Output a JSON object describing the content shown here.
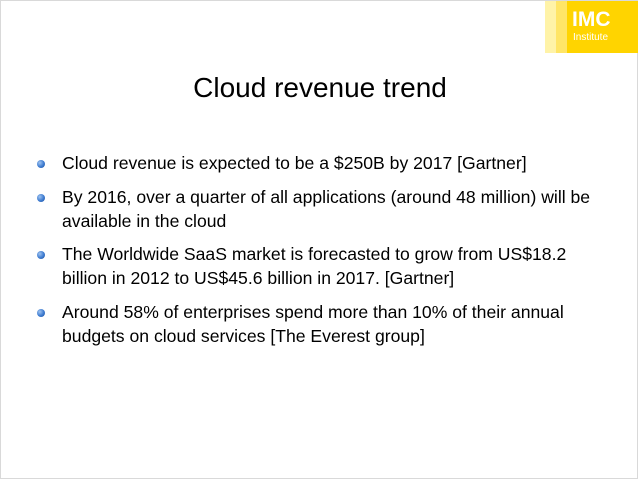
{
  "logo": {
    "main": "IMC",
    "sub": "Institute"
  },
  "slide": {
    "title": "Cloud revenue trend",
    "bullets": [
      "Cloud revenue is expected to be a $250B by 2017 [Gartner]",
      "By 2016, over a quarter of all applications (around 48 million) will be available in the cloud",
      "The Worldwide SaaS market is forecasted to grow from US$18.2 billion in 2012 to US$45.6 billion in 2017. [Gartner]",
      "Around 58% of enterprises spend more than 10% of their annual budgets on cloud services [The Everest group]"
    ]
  },
  "colors": {
    "logo_yellow": "#ffd400",
    "bullet_blue": "#3d7bd0"
  }
}
